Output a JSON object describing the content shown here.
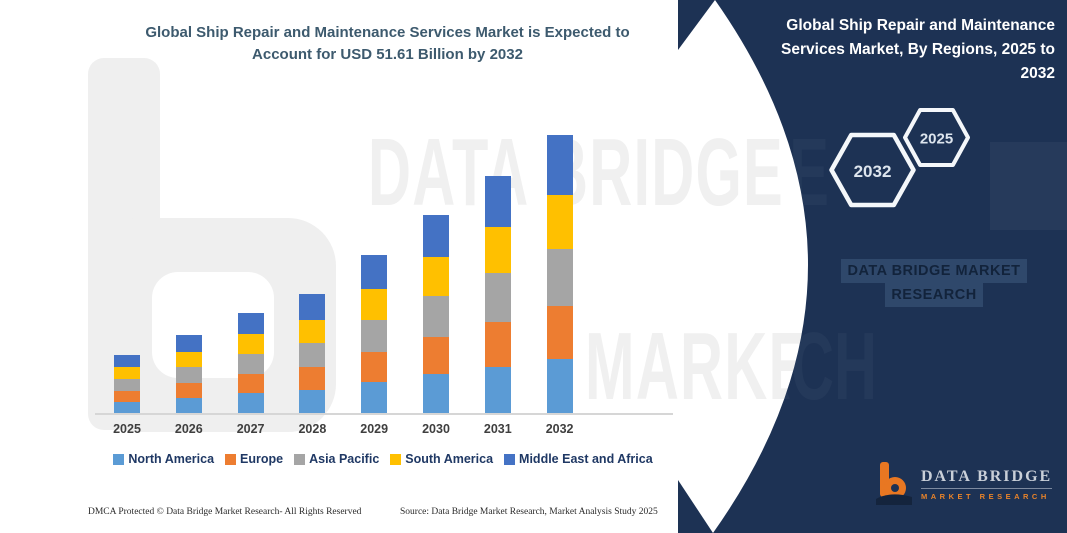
{
  "main_title_lines": [
    "Global Ship Repair and Maintenance Services Market is Expected to",
    "Account for USD 51.61 Billion by 2032"
  ],
  "chart_data": {
    "type": "bar",
    "stacked": true,
    "title": "Global Ship Repair and Maintenance Services Market is Expected to Account for USD 51.61 Billion by 2032",
    "unit": "USD Billion",
    "categories": [
      "2025",
      "2026",
      "2027",
      "2028",
      "2029",
      "2030",
      "2031",
      "2032"
    ],
    "totals_estimated": [
      10.8,
      14.5,
      18.6,
      22.1,
      29.3,
      36.8,
      44.0,
      51.61
    ],
    "stated_endpoint": "USD 51.61 Billion by 2032",
    "series": [
      {
        "name": "North America",
        "color": "#5B9BD5",
        "values": [
          2.11,
          2.83,
          3.63,
          4.31,
          5.71,
          7.18,
          8.58,
          10.06
        ]
      },
      {
        "name": "Europe",
        "color": "#ED7D31",
        "values": [
          2.05,
          2.76,
          3.53,
          4.2,
          5.57,
          6.99,
          8.36,
          9.81
        ]
      },
      {
        "name": "Asia Pacific",
        "color": "#A5A5A5",
        "values": [
          2.21,
          2.97,
          3.81,
          4.53,
          6.01,
          7.54,
          9.02,
          10.58
        ]
      },
      {
        "name": "South America",
        "color": "#FFC000",
        "values": [
          2.11,
          2.83,
          3.63,
          4.31,
          5.71,
          7.18,
          8.58,
          10.06
        ]
      },
      {
        "name": "Middle East and Africa",
        "color": "#4472C4",
        "values": [
          2.32,
          3.12,
          4.0,
          4.75,
          6.3,
          7.91,
          9.46,
          11.1
        ]
      }
    ],
    "xlabel": "",
    "ylabel": "",
    "ylim": [
      0,
      55
    ],
    "grid": false,
    "legend_position": "bottom"
  },
  "panel": {
    "title": "Global Ship Repair and Maintenance Services Market, By Regions, 2025 to 2032",
    "hexagon_large": "2032",
    "hexagon_small": "2025",
    "watermark_line1": "DATA BRIDGE MARKET",
    "watermark_line2": "RESEARCH",
    "logo_name": "DATA BRIDGE",
    "logo_tagline": "MARKET RESEARCH",
    "bg_color": "#1D3254"
  },
  "watermarks": {
    "row1": "DATA BRIDGE",
    "row2": "MARKET RESEARCH",
    "logo_shape": "data-bridge-b-glyph"
  },
  "footer": {
    "left": "DMCA Protected © Data Bridge Market Research- All Rights Reserved",
    "right": "Source: Data Bridge Market Research, Market Analysis Study 2025"
  },
  "colors": {
    "title_text": "#3D5A6E",
    "panel_bg": "#1D3254",
    "axis": "#D6D6D6",
    "x_label": "#3F3F3F",
    "legend_text": "#1F3864",
    "logo_orange": "#E87722"
  }
}
